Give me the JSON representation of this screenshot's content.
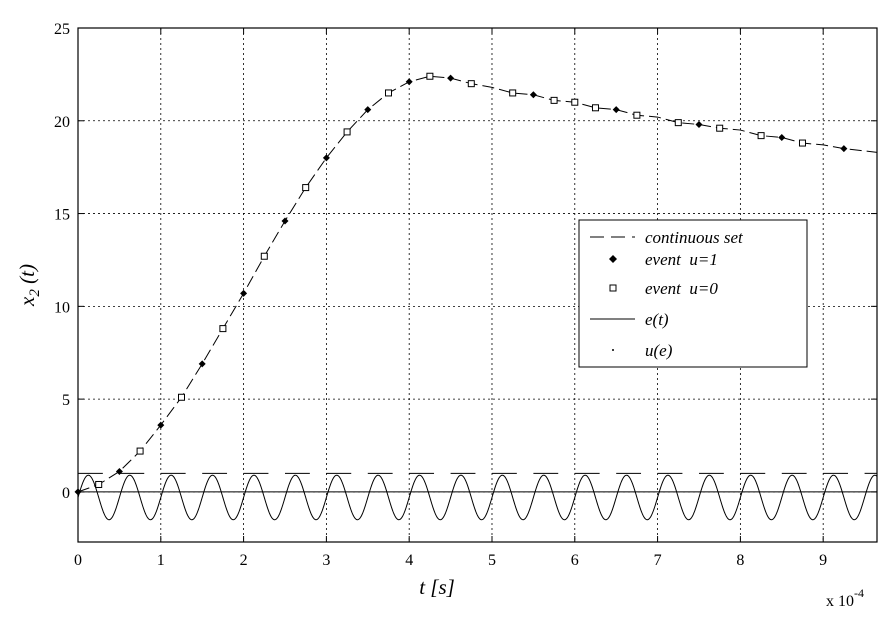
{
  "chart_data": {
    "type": "line",
    "xlabel": "t [s]",
    "ylabel": "x_2 (t)",
    "ylabel_main": "x",
    "ylabel_sub": "2",
    "ylabel_rest": " (t)",
    "x_multiplier": "x 10",
    "x_multiplier_exp": "-4",
    "xlim": [
      0,
      9.65
    ],
    "ylim": [
      -2.7,
      25
    ],
    "x_ticks": [
      0,
      1,
      2,
      3,
      4,
      5,
      6,
      7,
      8,
      9
    ],
    "x_tick_labels": [
      "0",
      "1",
      "2",
      "3",
      "4",
      "5",
      "6",
      "7",
      "8",
      "9"
    ],
    "y_ticks": [
      0,
      5,
      10,
      15,
      20,
      25
    ],
    "y_tick_labels": [
      "0",
      "5",
      "10",
      "15",
      "20",
      "25"
    ],
    "grid": true,
    "legend_position": "center-right",
    "series": [
      {
        "name": "continuous set",
        "style": "dashed",
        "x": [
          0,
          0.25,
          0.5,
          0.75,
          1.0,
          1.25,
          1.5,
          1.75,
          2.0,
          2.25,
          2.5,
          2.75,
          3.0,
          3.25,
          3.5,
          3.75,
          4.0,
          4.25,
          4.5,
          4.75,
          5.0,
          5.25,
          5.5,
          5.75,
          6.0,
          6.25,
          6.5,
          6.75,
          7.0,
          7.25,
          7.5,
          7.75,
          8.0,
          8.25,
          8.5,
          8.75,
          9.0,
          9.25,
          9.65
        ],
        "y": [
          0,
          0.4,
          1.1,
          2.2,
          3.6,
          5.1,
          6.9,
          8.8,
          10.7,
          12.7,
          14.6,
          16.4,
          18.0,
          19.4,
          20.6,
          21.5,
          22.1,
          22.4,
          22.3,
          22.0,
          21.8,
          21.5,
          21.4,
          21.1,
          21.0,
          20.7,
          20.6,
          20.3,
          20.2,
          19.9,
          19.8,
          19.6,
          19.5,
          19.2,
          19.1,
          18.8,
          18.7,
          18.5,
          18.3
        ]
      },
      {
        "name": "event  u=1",
        "style": "diamond",
        "x": [
          0,
          0.5,
          1.0,
          1.5,
          2.0,
          2.5,
          3.0,
          3.5,
          4.0,
          4.5,
          5.5,
          6.5,
          7.5,
          8.5,
          9.25
        ],
        "y": [
          0,
          1.1,
          3.6,
          6.9,
          10.7,
          14.6,
          18.0,
          20.6,
          22.1,
          22.3,
          21.4,
          20.6,
          19.8,
          19.1,
          18.5
        ]
      },
      {
        "name": "event  u=0",
        "style": "square",
        "x": [
          0.25,
          0.75,
          1.25,
          1.75,
          2.25,
          2.75,
          3.25,
          3.75,
          4.25,
          4.75,
          5.25,
          5.75,
          6.0,
          6.25,
          6.75,
          7.25,
          7.75,
          8.25,
          8.75
        ],
        "y": [
          0.4,
          2.2,
          5.1,
          8.8,
          12.7,
          16.4,
          19.4,
          21.5,
          22.4,
          22.0,
          21.5,
          21.1,
          21.0,
          20.7,
          20.3,
          19.9,
          19.6,
          19.2,
          18.8
        ]
      },
      {
        "name": "e(t)",
        "style": "solid",
        "function": "sine",
        "amplitude": 1.2,
        "offset": -0.3,
        "period": 0.5,
        "reference_level": 0
      },
      {
        "name": "u(e)",
        "style": "dot",
        "level": 1.0,
        "period": 0.5,
        "duty": 0.6
      }
    ]
  }
}
